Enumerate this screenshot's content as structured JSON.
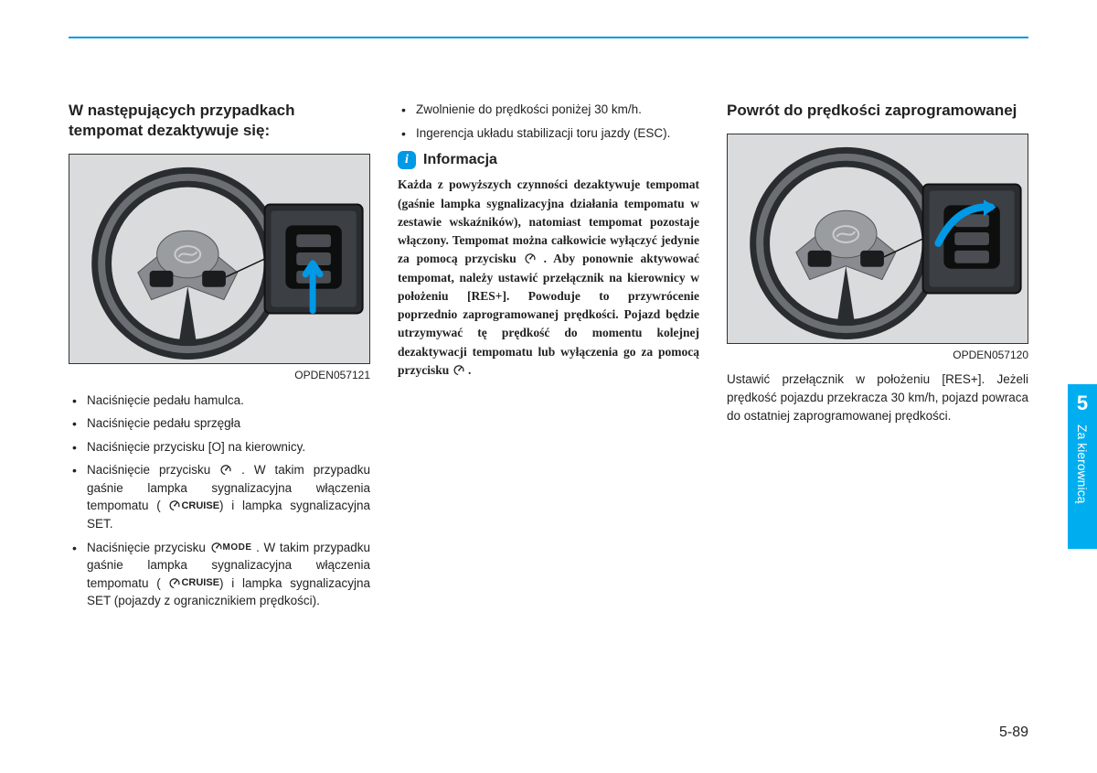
{
  "page": {
    "number": "5-89",
    "sidetab_chapter": "5",
    "sidetab_label": "Za kierownicą"
  },
  "col1": {
    "heading": "W następujących przypadkach tempomat dezaktywuje się:",
    "fig_code": "OPDEN057121",
    "bullets": [
      "Naciśnięcie pedału hamulca.",
      "Naciśnięcie pedału sprzęgła",
      "Naciśnięcie przycisku [O] na kierownicy.",
      "Naciśnięcie przycisku ⸨speedo⸩ . W takim przypadku gaśnie lampka sygnalizacyjna włączenia tempomatu ( ⸨speedo⸩⸨CRUISE⸩) i lampka sygnalizacyjna SET.",
      "Naciśnięcie przycisku ⸨speedo⸩⸨MODE⸩ . W takim przypadku gaśnie lampka sygnalizacyjna włączenia tempomatu ( ⸨speedo⸩⸨CRUISE⸩) i lampka sygnalizacyjna SET (pojazdy z ogranicznikiem prędkości)."
    ]
  },
  "col2": {
    "bullets_top": [
      "Zwolnienie do prędkości poniżej 30 km/h.",
      "Ingerencja układu stabilizacji toru jazdy (ESC)."
    ],
    "info_badge": "i",
    "info_title": "Informacja",
    "info_body": "Każda z powyższych czynności dezaktywuje tempomat (gaśnie lampka sygnalizacyjna działania tempomatu w zestawie wskaźników), natomiast tempomat pozostaje włączony. Tempomat można całkowicie wyłączyć jedynie za pomocą przycisku ⸨speedo⸩ . Aby ponownie aktywować tempomat, należy ustawić przełącznik na kierownicy w położeniu [RES+]. Powoduje to przywrócenie poprzednio zaprogramowanej prędkości. Pojazd będzie utrzymywać tę prędkość do momentu kolejnej dezaktywacji tempomatu lub wyłączenia go za pomocą przycisku ⸨speedo⸩ ."
  },
  "col3": {
    "heading": "Powrót do prędkości zaprogramowanej",
    "fig_code": "OPDEN057120",
    "body": "Ustawić przełącznik w położeniu [RES+]. Jeżeli prędkość pojazdu przekracza 30 km/h, pojazd powraca do ostatniej zaprogramowanej prędkości."
  },
  "icons": {
    "speedo_svg": "<svg class=\"speedo\" viewBox=\"0 0 20 20\"><circle cx=\"10\" cy=\"11\" r=\"7\" fill=\"none\" stroke=\"currentColor\" stroke-width=\"1.8\" stroke-dasharray=\"30 10\" transform=\"rotate(130 10 11)\"/><line x1=\"10\" y1=\"11\" x2=\"14\" y2=\"6\" stroke=\"currentColor\" stroke-width=\"1.8\"/><circle cx=\"10\" cy=\"11\" r=\"1.3\" fill=\"currentColor\"/></svg>"
  },
  "colors": {
    "accent": "#00aef0",
    "rule": "#0099e6",
    "arrow": "#0099e6",
    "fig_bg": "#d9dbdc",
    "wheel_dark": "#2a2d30",
    "wheel_light": "#6b6f73",
    "hub": "#888b8f"
  }
}
